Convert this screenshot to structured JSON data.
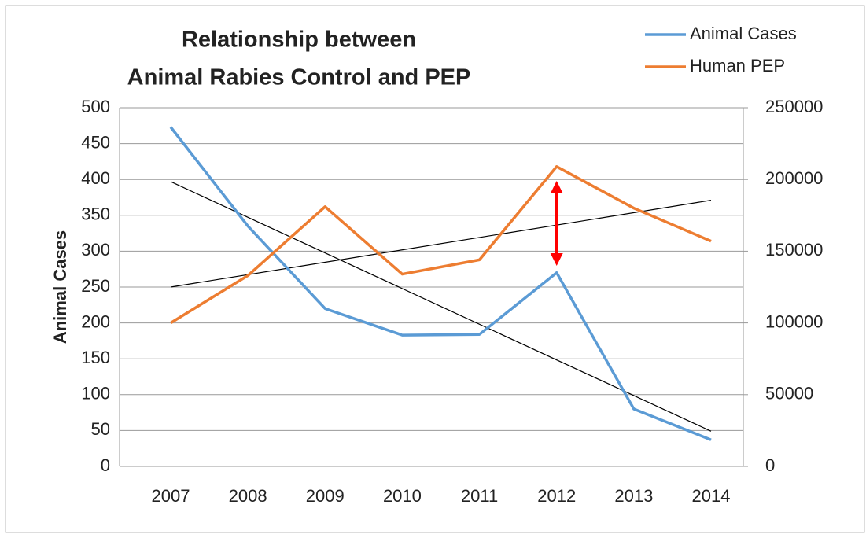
{
  "chart_data": {
    "type": "line",
    "title": [
      "Relationship between",
      "Animal Rabies Control and PEP"
    ],
    "y_label": "Animal Cases",
    "categories": [
      "2007",
      "2008",
      "2009",
      "2010",
      "2011",
      "2012",
      "2013",
      "2014"
    ],
    "series": [
      {
        "name": "Animal Cases",
        "color": "#5b9bd5",
        "values": [
          473,
          335,
          220,
          183,
          184,
          270,
          80,
          37
        ]
      },
      {
        "name": "Human PEP",
        "color": "#ed7d31",
        "axis": "y2",
        "values": [
          100000,
          133000,
          181000,
          134000,
          144000,
          209000,
          180000,
          157000
        ]
      }
    ],
    "trendlines": [
      {
        "color": "#000000",
        "values": [
          397,
          49
        ]
      },
      {
        "color": "#000000",
        "axis": "y2",
        "values": [
          125000,
          185500
        ]
      }
    ],
    "ylim": [
      0,
      500
    ],
    "yticks": [
      0,
      50,
      100,
      150,
      200,
      250,
      300,
      350,
      400,
      450,
      500
    ],
    "y2lim": [
      0,
      250000
    ],
    "y2ticks": [
      0,
      50000,
      100000,
      150000,
      200000,
      250000
    ],
    "grid": true,
    "legend": "top-right"
  }
}
